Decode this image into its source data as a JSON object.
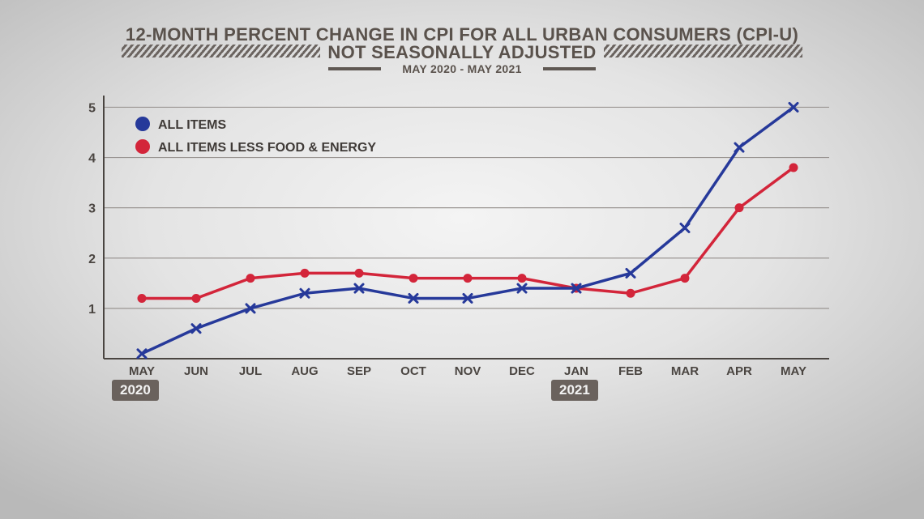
{
  "header": {
    "title_line1": "12-MONTH PERCENT CHANGE IN CPI FOR ALL URBAN CONSUMERS (CPI-U)",
    "title_line2": "NOT SEASONALLY ADJUSTED",
    "subtitle": "MAY 2020 - MAY 2021"
  },
  "years": {
    "start": "2020",
    "jan": "2021"
  },
  "chart_data": {
    "type": "line",
    "title": "12-MONTH PERCENT CHANGE IN CPI FOR ALL URBAN CONSUMERS (CPI-U)",
    "subtitle": "NOT SEASONALLY ADJUSTED / MAY 2020 - MAY 2021",
    "xlabel": "",
    "ylabel": "",
    "categories": [
      "MAY",
      "JUN",
      "JUL",
      "AUG",
      "SEP",
      "OCT",
      "NOV",
      "DEC",
      "JAN",
      "FEB",
      "MAR",
      "APR",
      "MAY"
    ],
    "y_ticks": [
      1,
      2,
      3,
      4,
      5
    ],
    "ylim": [
      0,
      5.2
    ],
    "grid": true,
    "legend_position": "top-left",
    "series": [
      {
        "name": "ALL ITEMS",
        "color": "#26399a",
        "marker": "x",
        "values": [
          0.1,
          0.6,
          1.0,
          1.3,
          1.4,
          1.2,
          1.2,
          1.4,
          1.4,
          1.7,
          2.6,
          4.2,
          5.0
        ]
      },
      {
        "name": "ALL ITEMS LESS FOOD & ENERGY",
        "color": "#d3253a",
        "marker": "dot",
        "values": [
          1.2,
          1.2,
          1.6,
          1.7,
          1.7,
          1.6,
          1.6,
          1.6,
          1.4,
          1.3,
          1.6,
          3.0,
          3.8
        ]
      }
    ]
  }
}
